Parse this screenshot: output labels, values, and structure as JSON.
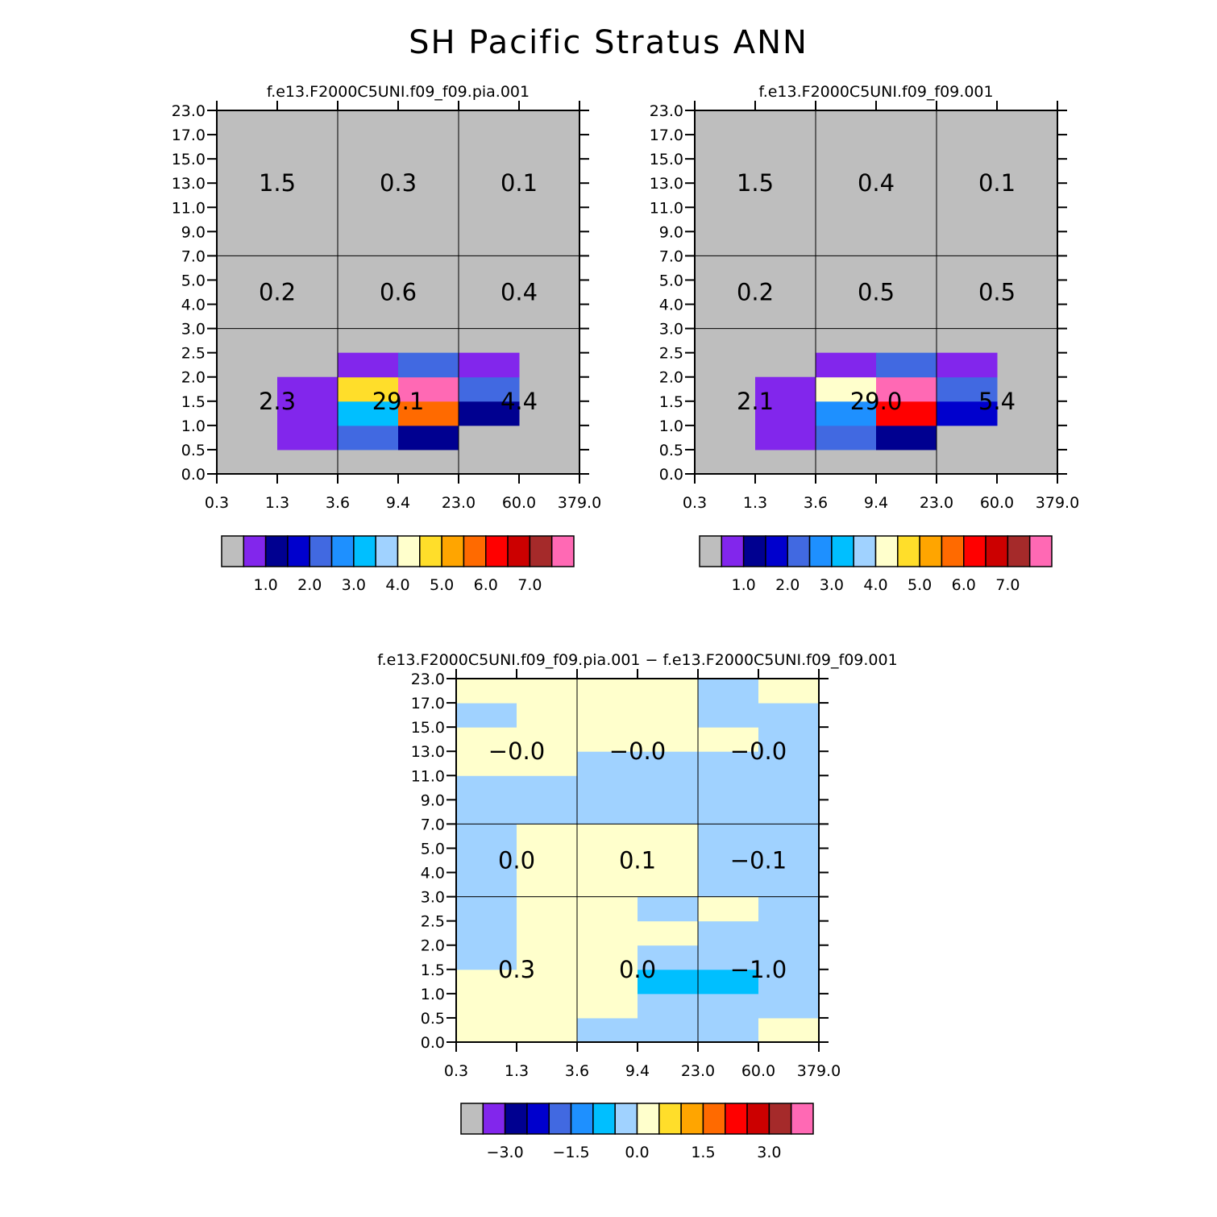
{
  "title": "SH Pacific Stratus ANN",
  "colors": {
    "panel_bg": "#bebebe",
    "palette": [
      "#bebebe",
      "#8226ec",
      "#000090",
      "#0000cd",
      "#4169e1",
      "#1e90ff",
      "#00bfff",
      "#a0d2ff",
      "#ffffcc",
      "#ffde2a",
      "#ffa500",
      "#ff6a00",
      "#ff0000",
      "#cc0000",
      "#a52a2a",
      "#ff69b4"
    ],
    "diff_palette": [
      "#bebebe",
      "#8226ec",
      "#000090",
      "#0000cd",
      "#4169e1",
      "#1e90ff",
      "#00bfff",
      "#a0d2ff",
      "#ffffcc",
      "#ffde2a",
      "#ffa500",
      "#ff6a00",
      "#ff0000",
      "#cc0000",
      "#a52a2a",
      "#ff69b4"
    ]
  },
  "chart_data": [
    {
      "type": "heatmap",
      "title": "f.e13.F2000C5UNI.f09_f09.pia.001",
      "x_tick_labels": [
        "0.3",
        "1.3",
        "3.6",
        "9.4",
        "23.0",
        "60.0",
        "379.0"
      ],
      "y_tick_labels": [
        "0.0",
        "0.5",
        "1.0",
        "1.5",
        "2.0",
        "2.5",
        "3.0",
        "4.0",
        "5.0",
        "7.0",
        "9.0",
        "11.0",
        "13.0",
        "15.0",
        "17.0",
        "23.0"
      ],
      "group_lines": {
        "x_bins": [
          2,
          4
        ],
        "y_bins": [
          6,
          9
        ]
      },
      "cells": [
        {
          "xb": 1,
          "yb": 1,
          "level": 1
        },
        {
          "xb": 1,
          "yb": 2,
          "level": 1
        },
        {
          "xb": 1,
          "yb": 3,
          "level": 1
        },
        {
          "xb": 2,
          "yb": 1,
          "level": 4
        },
        {
          "xb": 2,
          "yb": 2,
          "level": 6
        },
        {
          "xb": 2,
          "yb": 3,
          "level": 9
        },
        {
          "xb": 2,
          "yb": 4,
          "level": 1
        },
        {
          "xb": 3,
          "yb": 1,
          "level": 2
        },
        {
          "xb": 3,
          "yb": 2,
          "level": 11
        },
        {
          "xb": 3,
          "yb": 3,
          "level": 15
        },
        {
          "xb": 3,
          "yb": 4,
          "level": 4
        },
        {
          "xb": 4,
          "yb": 2,
          "level": 2
        },
        {
          "xb": 4,
          "yb": 3,
          "level": 4
        },
        {
          "xb": 4,
          "yb": 4,
          "level": 1
        }
      ],
      "group_values": [
        {
          "label": "1.5",
          "gx": 0,
          "gy": 2
        },
        {
          "label": "0.3",
          "gx": 1,
          "gy": 2
        },
        {
          "label": "0.1",
          "gx": 2,
          "gy": 2
        },
        {
          "label": "0.2",
          "gx": 0,
          "gy": 1
        },
        {
          "label": "0.6",
          "gx": 1,
          "gy": 1
        },
        {
          "label": "0.4",
          "gx": 2,
          "gy": 1
        },
        {
          "label": "2.3",
          "gx": 0,
          "gy": 0
        },
        {
          "label": "29.1",
          "gx": 1,
          "gy": 0
        },
        {
          "label": "4.4",
          "gx": 2,
          "gy": 0
        }
      ],
      "colorbar": {
        "palette": "palette",
        "labels": [
          {
            "text": "1.0",
            "boundary": 2
          },
          {
            "text": "2.0",
            "boundary": 4
          },
          {
            "text": "3.0",
            "boundary": 6
          },
          {
            "text": "4.0",
            "boundary": 8
          },
          {
            "text": "5.0",
            "boundary": 10
          },
          {
            "text": "6.0",
            "boundary": 12
          },
          {
            "text": "7.0",
            "boundary": 14
          }
        ]
      }
    },
    {
      "type": "heatmap",
      "title": "f.e13.F2000C5UNI.f09_f09.001",
      "x_tick_labels": [
        "0.3",
        "1.3",
        "3.6",
        "9.4",
        "23.0",
        "60.0",
        "379.0"
      ],
      "y_tick_labels": [
        "0.0",
        "0.5",
        "1.0",
        "1.5",
        "2.0",
        "2.5",
        "3.0",
        "4.0",
        "5.0",
        "7.0",
        "9.0",
        "11.0",
        "13.0",
        "15.0",
        "17.0",
        "23.0"
      ],
      "group_lines": {
        "x_bins": [
          2,
          4
        ],
        "y_bins": [
          6,
          9
        ]
      },
      "cells": [
        {
          "xb": 1,
          "yb": 1,
          "level": 1
        },
        {
          "xb": 1,
          "yb": 2,
          "level": 1
        },
        {
          "xb": 1,
          "yb": 3,
          "level": 1
        },
        {
          "xb": 2,
          "yb": 1,
          "level": 4
        },
        {
          "xb": 2,
          "yb": 2,
          "level": 5
        },
        {
          "xb": 2,
          "yb": 3,
          "level": 8
        },
        {
          "xb": 2,
          "yb": 4,
          "level": 1
        },
        {
          "xb": 3,
          "yb": 1,
          "level": 2
        },
        {
          "xb": 3,
          "yb": 2,
          "level": 12
        },
        {
          "xb": 3,
          "yb": 3,
          "level": 15
        },
        {
          "xb": 3,
          "yb": 4,
          "level": 4
        },
        {
          "xb": 4,
          "yb": 2,
          "level": 3
        },
        {
          "xb": 4,
          "yb": 3,
          "level": 4
        },
        {
          "xb": 4,
          "yb": 4,
          "level": 1
        }
      ],
      "group_values": [
        {
          "label": "1.5",
          "gx": 0,
          "gy": 2
        },
        {
          "label": "0.4",
          "gx": 1,
          "gy": 2
        },
        {
          "label": "0.1",
          "gx": 2,
          "gy": 2
        },
        {
          "label": "0.2",
          "gx": 0,
          "gy": 1
        },
        {
          "label": "0.5",
          "gx": 1,
          "gy": 1
        },
        {
          "label": "0.5",
          "gx": 2,
          "gy": 1
        },
        {
          "label": "2.1",
          "gx": 0,
          "gy": 0
        },
        {
          "label": "29.0",
          "gx": 1,
          "gy": 0
        },
        {
          "label": "5.4",
          "gx": 2,
          "gy": 0
        }
      ],
      "colorbar": {
        "palette": "palette",
        "labels": [
          {
            "text": "1.0",
            "boundary": 2
          },
          {
            "text": "2.0",
            "boundary": 4
          },
          {
            "text": "3.0",
            "boundary": 6
          },
          {
            "text": "4.0",
            "boundary": 8
          },
          {
            "text": "5.0",
            "boundary": 10
          },
          {
            "text": "6.0",
            "boundary": 12
          },
          {
            "text": "7.0",
            "boundary": 14
          }
        ]
      }
    },
    {
      "type": "heatmap",
      "title": "f.e13.F2000C5UNI.f09_f09.pia.001 − f.e13.F2000C5UNI.f09_f09.001",
      "x_tick_labels": [
        "0.3",
        "1.3",
        "3.6",
        "9.4",
        "23.0",
        "60.0",
        "379.0"
      ],
      "y_tick_labels": [
        "0.0",
        "0.5",
        "1.0",
        "1.5",
        "2.0",
        "2.5",
        "3.0",
        "4.0",
        "5.0",
        "7.0",
        "9.0",
        "11.0",
        "13.0",
        "15.0",
        "17.0",
        "23.0"
      ],
      "group_lines": {
        "x_bins": [
          2,
          4
        ],
        "y_bins": [
          6,
          9
        ]
      },
      "cells": [
        {
          "xb": 0,
          "yb": 0,
          "level": 8
        },
        {
          "xb": 0,
          "yb": 1,
          "level": 8
        },
        {
          "xb": 0,
          "yb": 2,
          "level": 8
        },
        {
          "xb": 0,
          "yb": 3,
          "level": 7
        },
        {
          "xb": 0,
          "yb": 4,
          "level": 7
        },
        {
          "xb": 0,
          "yb": 5,
          "level": 7
        },
        {
          "xb": 0,
          "yb": 6,
          "level": 7
        },
        {
          "xb": 0,
          "yb": 7,
          "level": 7
        },
        {
          "xb": 0,
          "yb": 8,
          "level": 7
        },
        {
          "xb": 0,
          "yb": 9,
          "level": 7
        },
        {
          "xb": 0,
          "yb": 10,
          "level": 7
        },
        {
          "xb": 0,
          "yb": 11,
          "level": 8
        },
        {
          "xb": 0,
          "yb": 12,
          "level": 8
        },
        {
          "xb": 0,
          "yb": 13,
          "level": 7
        },
        {
          "xb": 0,
          "yb": 14,
          "level": 8
        },
        {
          "xb": 1,
          "yb": 0,
          "level": 8
        },
        {
          "xb": 1,
          "yb": 1,
          "level": 8
        },
        {
          "xb": 1,
          "yb": 2,
          "level": 8
        },
        {
          "xb": 1,
          "yb": 3,
          "level": 8
        },
        {
          "xb": 1,
          "yb": 4,
          "level": 8
        },
        {
          "xb": 1,
          "yb": 5,
          "level": 8
        },
        {
          "xb": 1,
          "yb": 6,
          "level": 8
        },
        {
          "xb": 1,
          "yb": 7,
          "level": 8
        },
        {
          "xb": 1,
          "yb": 8,
          "level": 8
        },
        {
          "xb": 1,
          "yb": 9,
          "level": 7
        },
        {
          "xb": 1,
          "yb": 10,
          "level": 7
        },
        {
          "xb": 1,
          "yb": 11,
          "level": 8
        },
        {
          "xb": 1,
          "yb": 12,
          "level": 8
        },
        {
          "xb": 1,
          "yb": 13,
          "level": 8
        },
        {
          "xb": 1,
          "yb": 14,
          "level": 8
        },
        {
          "xb": 2,
          "yb": 0,
          "level": 7
        },
        {
          "xb": 2,
          "yb": 1,
          "level": 8
        },
        {
          "xb": 2,
          "yb": 2,
          "level": 8
        },
        {
          "xb": 2,
          "yb": 3,
          "level": 8
        },
        {
          "xb": 2,
          "yb": 4,
          "level": 8
        },
        {
          "xb": 2,
          "yb": 5,
          "level": 8
        },
        {
          "xb": 2,
          "yb": 6,
          "level": 8
        },
        {
          "xb": 2,
          "yb": 7,
          "level": 8
        },
        {
          "xb": 2,
          "yb": 8,
          "level": 8
        },
        {
          "xb": 2,
          "yb": 9,
          "level": 7
        },
        {
          "xb": 2,
          "yb": 10,
          "level": 7
        },
        {
          "xb": 2,
          "yb": 11,
          "level": 7
        },
        {
          "xb": 2,
          "yb": 12,
          "level": 8
        },
        {
          "xb": 2,
          "yb": 13,
          "level": 8
        },
        {
          "xb": 2,
          "yb": 14,
          "level": 8
        },
        {
          "xb": 3,
          "yb": 0,
          "level": 7
        },
        {
          "xb": 3,
          "yb": 1,
          "level": 7
        },
        {
          "xb": 3,
          "yb": 2,
          "level": 6
        },
        {
          "xb": 3,
          "yb": 3,
          "level": 7
        },
        {
          "xb": 3,
          "yb": 4,
          "level": 8
        },
        {
          "xb": 3,
          "yb": 5,
          "level": 7
        },
        {
          "xb": 3,
          "yb": 6,
          "level": 8
        },
        {
          "xb": 3,
          "yb": 7,
          "level": 8
        },
        {
          "xb": 3,
          "yb": 8,
          "level": 8
        },
        {
          "xb": 3,
          "yb": 9,
          "level": 7
        },
        {
          "xb": 3,
          "yb": 10,
          "level": 7
        },
        {
          "xb": 3,
          "yb": 11,
          "level": 7
        },
        {
          "xb": 3,
          "yb": 12,
          "level": 8
        },
        {
          "xb": 3,
          "yb": 13,
          "level": 8
        },
        {
          "xb": 3,
          "yb": 14,
          "level": 8
        },
        {
          "xb": 4,
          "yb": 0,
          "level": 7
        },
        {
          "xb": 4,
          "yb": 1,
          "level": 7
        },
        {
          "xb": 4,
          "yb": 2,
          "level": 6
        },
        {
          "xb": 4,
          "yb": 3,
          "level": 7
        },
        {
          "xb": 4,
          "yb": 4,
          "level": 7
        },
        {
          "xb": 4,
          "yb": 5,
          "level": 8
        },
        {
          "xb": 4,
          "yb": 6,
          "level": 7
        },
        {
          "xb": 4,
          "yb": 7,
          "level": 7
        },
        {
          "xb": 4,
          "yb": 8,
          "level": 7
        },
        {
          "xb": 4,
          "yb": 9,
          "level": 7
        },
        {
          "xb": 4,
          "yb": 10,
          "level": 7
        },
        {
          "xb": 4,
          "yb": 11,
          "level": 7
        },
        {
          "xb": 4,
          "yb": 12,
          "level": 8
        },
        {
          "xb": 4,
          "yb": 13,
          "level": 7
        },
        {
          "xb": 4,
          "yb": 14,
          "level": 7
        },
        {
          "xb": 5,
          "yb": 0,
          "level": 8
        },
        {
          "xb": 5,
          "yb": 1,
          "level": 7
        },
        {
          "xb": 5,
          "yb": 2,
          "level": 7
        },
        {
          "xb": 5,
          "yb": 3,
          "level": 7
        },
        {
          "xb": 5,
          "yb": 4,
          "level": 7
        },
        {
          "xb": 5,
          "yb": 5,
          "level": 7
        },
        {
          "xb": 5,
          "yb": 6,
          "level": 7
        },
        {
          "xb": 5,
          "yb": 7,
          "level": 7
        },
        {
          "xb": 5,
          "yb": 8,
          "level": 7
        },
        {
          "xb": 5,
          "yb": 9,
          "level": 7
        },
        {
          "xb": 5,
          "yb": 10,
          "level": 7
        },
        {
          "xb": 5,
          "yb": 11,
          "level": 7
        },
        {
          "xb": 5,
          "yb": 12,
          "level": 7
        },
        {
          "xb": 5,
          "yb": 13,
          "level": 7
        },
        {
          "xb": 5,
          "yb": 14,
          "level": 8
        }
      ],
      "group_values": [
        {
          "label": "−0.0",
          "gx": 0,
          "gy": 2
        },
        {
          "label": "−0.0",
          "gx": 1,
          "gy": 2
        },
        {
          "label": "−0.0",
          "gx": 2,
          "gy": 2
        },
        {
          "label": "0.0",
          "gx": 0,
          "gy": 1
        },
        {
          "label": "0.1",
          "gx": 1,
          "gy": 1
        },
        {
          "label": "−0.1",
          "gx": 2,
          "gy": 1
        },
        {
          "label": "0.3",
          "gx": 0,
          "gy": 0
        },
        {
          "label": "0.0",
          "gx": 1,
          "gy": 0
        },
        {
          "label": "−1.0",
          "gx": 2,
          "gy": 0
        }
      ],
      "colorbar": {
        "palette": "diff_palette",
        "labels": [
          {
            "text": "−3.0",
            "boundary": 2
          },
          {
            "text": "−1.5",
            "boundary": 5
          },
          {
            "text": "0.0",
            "boundary": 8
          },
          {
            "text": "1.5",
            "boundary": 11
          },
          {
            "text": "3.0",
            "boundary": 14
          }
        ]
      }
    }
  ]
}
